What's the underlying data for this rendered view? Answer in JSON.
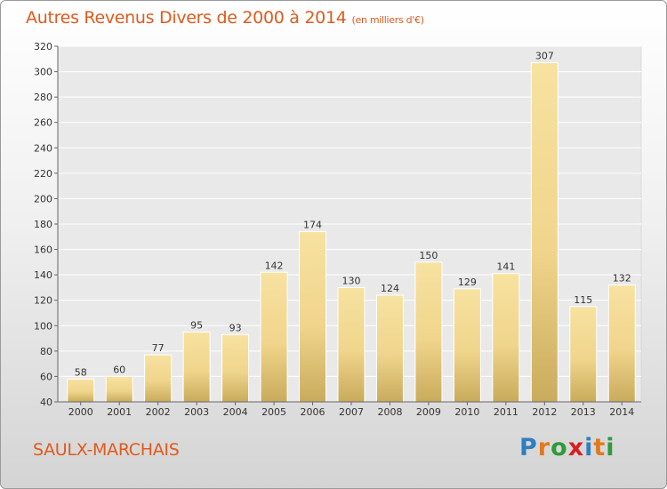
{
  "chart_data": {
    "type": "bar",
    "title": "Autres Revenus Divers de 2000 à 2014",
    "unit_note": "(en milliers d'€)",
    "categories": [
      "2000",
      "2001",
      "2002",
      "2003",
      "2004",
      "2005",
      "2006",
      "2007",
      "2008",
      "2009",
      "2010",
      "2011",
      "2012",
      "2013",
      "2014"
    ],
    "values": [
      58,
      60,
      77,
      95,
      93,
      142,
      174,
      130,
      124,
      150,
      129,
      141,
      307,
      115,
      132
    ],
    "ylim": [
      40,
      320
    ],
    "yticks": [
      40,
      60,
      80,
      100,
      120,
      140,
      160,
      180,
      200,
      220,
      240,
      260,
      280,
      300,
      320
    ],
    "grid": "horizontal",
    "bar_color": "#f0d58c"
  },
  "footer": {
    "commune": "SAULX-MARCHAIS",
    "logo_letters": [
      {
        "ch": "P",
        "color": "#2f7fc0"
      },
      {
        "ch": "r",
        "color": "#e07a1a"
      },
      {
        "ch": "o",
        "color": "#2f9a3a"
      },
      {
        "ch": "x",
        "color": "#d42020"
      },
      {
        "ch": "i",
        "color": "#2f7fc0"
      },
      {
        "ch": "t",
        "color": "#e07a1a"
      },
      {
        "ch": "i",
        "color": "#2f9a3a"
      }
    ]
  }
}
